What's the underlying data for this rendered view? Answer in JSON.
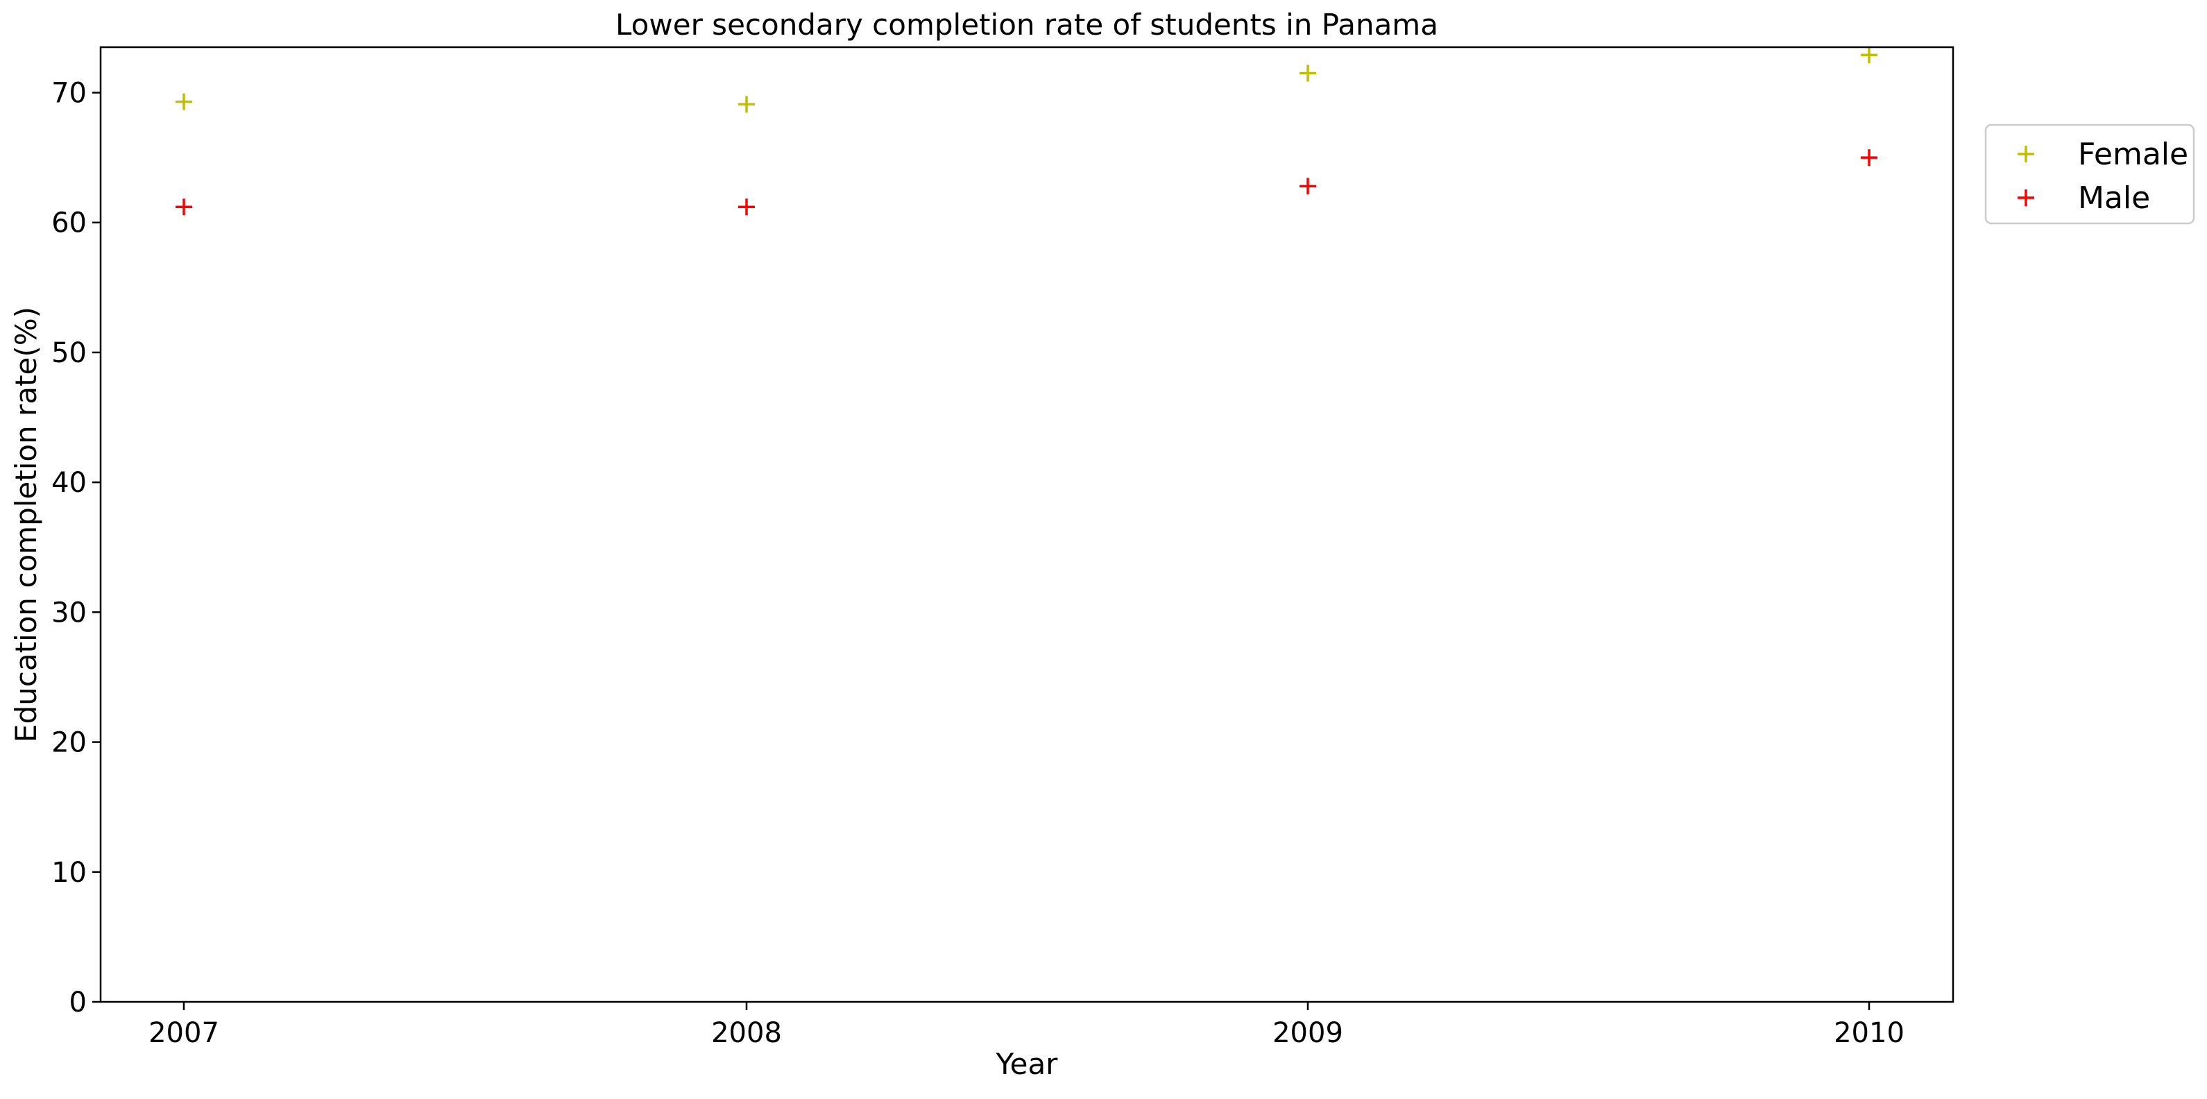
{
  "chart_data": {
    "type": "scatter",
    "title": "Lower secondary completion rate of students in Panama",
    "xlabel": "Year",
    "ylabel": "Education completion rate(%)",
    "x": [
      "2007",
      "2008",
      "2009",
      "2010"
    ],
    "yticks": [
      0,
      10,
      20,
      30,
      40,
      50,
      60,
      70
    ],
    "ylim": [
      0,
      73.5
    ],
    "marker": "+",
    "grid": false,
    "legend_position": "right-outside-top",
    "series": [
      {
        "name": "Female",
        "color": "#bfbf00",
        "values": [
          69.3,
          69.1,
          71.5,
          72.9
        ]
      },
      {
        "name": "Male",
        "color": "#ff0000",
        "values": [
          61.2,
          61.2,
          62.8,
          65.0
        ]
      }
    ]
  }
}
